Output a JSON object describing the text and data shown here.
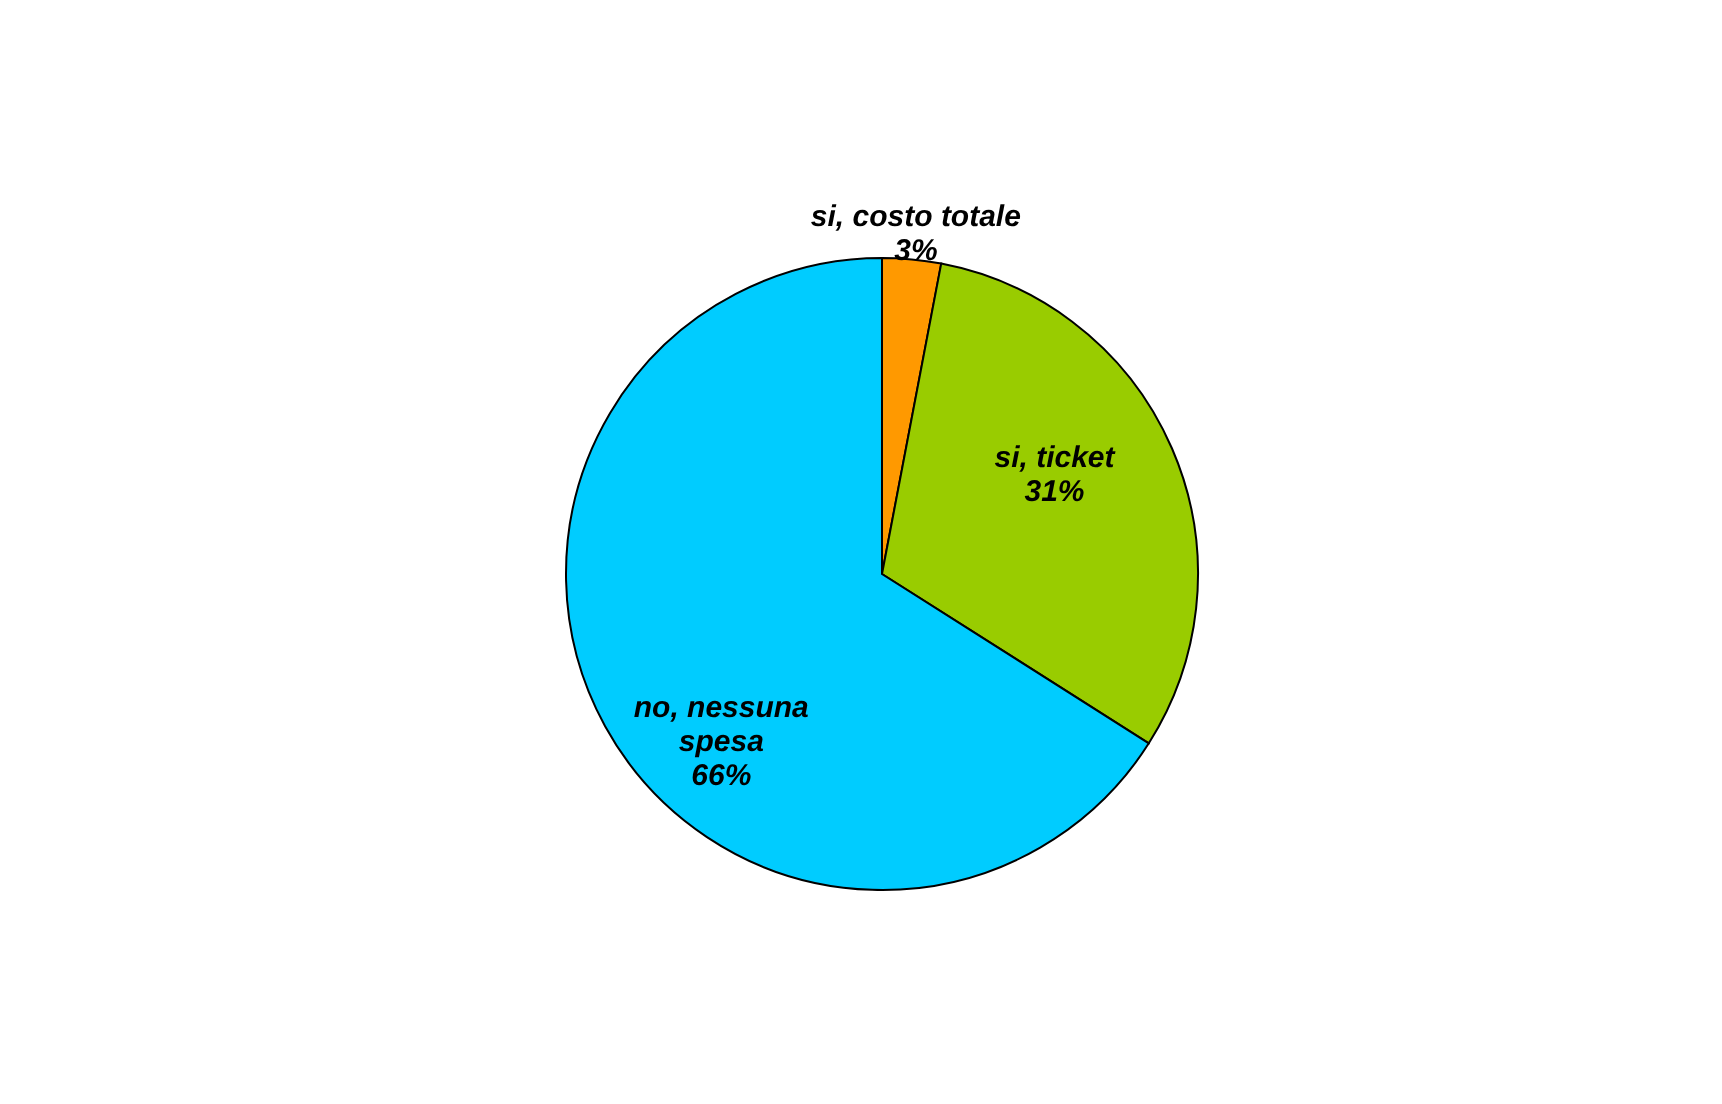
{
  "chart_data": {
    "type": "pie",
    "categories": [
      "si, costo totale",
      "si, ticket",
      "no, nessuna spesa"
    ],
    "values": [
      3,
      31,
      66
    ],
    "value_labels": [
      "3%",
      "31%",
      "66%"
    ],
    "colors": [
      "#ff9900",
      "#99cc00",
      "#00ccff"
    ]
  }
}
